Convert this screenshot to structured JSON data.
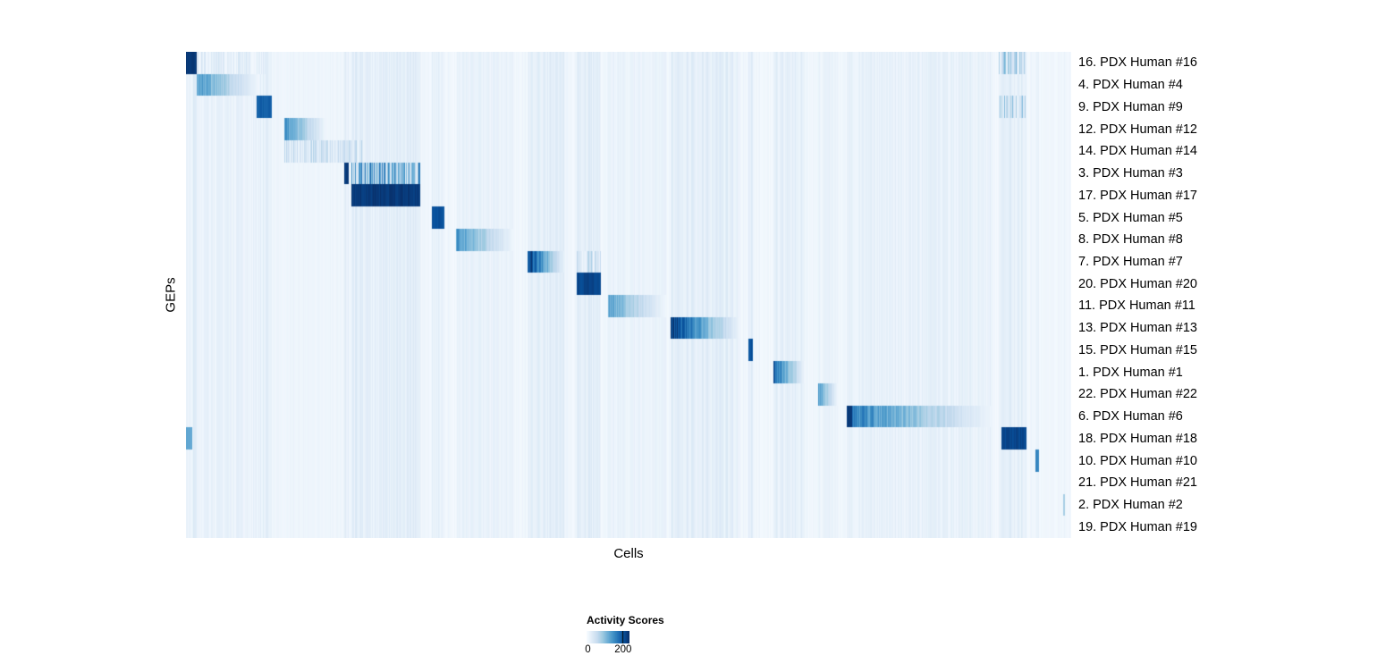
{
  "chart_data": {
    "type": "heatmap",
    "title": "",
    "xlabel": "Cells",
    "ylabel": "GEPs",
    "legend": {
      "title": "Activity Scores",
      "tick_labels": [
        "0",
        "200"
      ],
      "tick_positions": [
        0.03,
        0.85
      ],
      "colormap": [
        "#f7fbff",
        "#deebf7",
        "#c6dbef",
        "#9ecae1",
        "#6baed6",
        "#4292c6",
        "#2171b5",
        "#08519c",
        "#08306b"
      ]
    },
    "value_range": [
      0,
      200
    ],
    "grid": false,
    "cross_talk": 0.13,
    "rows": [
      {
        "label": "16. PDX Human #16",
        "segments": [
          {
            "start": 0.0,
            "end": 0.012,
            "intensity": 1.0,
            "style": "solid"
          },
          {
            "start": 0.012,
            "end": 0.09,
            "intensity": 0.18,
            "style": "stripes"
          },
          {
            "start": 0.918,
            "end": 0.948,
            "intensity": 0.5,
            "style": "stripes"
          }
        ]
      },
      {
        "label": "4. PDX Human #4",
        "segments": [
          {
            "start": 0.012,
            "end": 0.083,
            "intensity": 0.6,
            "style": "gradient"
          }
        ]
      },
      {
        "label": "9. PDX Human #9",
        "segments": [
          {
            "start": 0.08,
            "end": 0.097,
            "intensity": 0.85,
            "style": "solid"
          },
          {
            "start": 0.918,
            "end": 0.948,
            "intensity": 0.45,
            "style": "stripes"
          }
        ]
      },
      {
        "label": "12. PDX Human #12",
        "segments": [
          {
            "start": 0.111,
            "end": 0.159,
            "intensity": 0.6,
            "style": "gradient"
          }
        ]
      },
      {
        "label": "14. PDX Human #14",
        "segments": [
          {
            "start": 0.111,
            "end": 0.2,
            "intensity": 0.32,
            "style": "stripes"
          }
        ]
      },
      {
        "label": "3. PDX Human #3",
        "segments": [
          {
            "start": 0.179,
            "end": 0.184,
            "intensity": 1.0,
            "style": "solid"
          },
          {
            "start": 0.187,
            "end": 0.265,
            "intensity": 0.8,
            "style": "stripes"
          }
        ]
      },
      {
        "label": "17. PDX Human #17",
        "segments": [
          {
            "start": 0.187,
            "end": 0.265,
            "intensity": 1.0,
            "style": "solid"
          }
        ]
      },
      {
        "label": "5. PDX Human #5",
        "segments": [
          {
            "start": 0.278,
            "end": 0.292,
            "intensity": 0.9,
            "style": "solid"
          }
        ]
      },
      {
        "label": "8. PDX Human #8",
        "segments": [
          {
            "start": 0.305,
            "end": 0.371,
            "intensity": 0.6,
            "style": "gradient"
          }
        ]
      },
      {
        "label": "7. PDX Human #7",
        "segments": [
          {
            "start": 0.386,
            "end": 0.428,
            "intensity": 0.95,
            "style": "gradient"
          },
          {
            "start": 0.441,
            "end": 0.469,
            "intensity": 0.35,
            "style": "stripes"
          }
        ]
      },
      {
        "label": "20. PDX Human #20",
        "segments": [
          {
            "start": 0.441,
            "end": 0.469,
            "intensity": 0.95,
            "style": "solid"
          }
        ]
      },
      {
        "label": "11. PDX Human #11",
        "segments": [
          {
            "start": 0.477,
            "end": 0.542,
            "intensity": 0.55,
            "style": "gradient"
          }
        ]
      },
      {
        "label": "13. PDX Human #13",
        "segments": [
          {
            "start": 0.547,
            "end": 0.625,
            "intensity": 0.95,
            "style": "gradient"
          }
        ]
      },
      {
        "label": "15. PDX Human #15",
        "segments": [
          {
            "start": 0.635,
            "end": 0.64,
            "intensity": 0.9,
            "style": "solid"
          }
        ]
      },
      {
        "label": "1. PDX Human #1",
        "segments": [
          {
            "start": 0.664,
            "end": 0.699,
            "intensity": 0.85,
            "style": "gradient"
          }
        ]
      },
      {
        "label": "22. PDX Human #22",
        "segments": [
          {
            "start": 0.714,
            "end": 0.736,
            "intensity": 0.6,
            "style": "gradient"
          }
        ]
      },
      {
        "label": "6. PDX Human #6",
        "segments": [
          {
            "start": 0.746,
            "end": 0.753,
            "intensity": 1.0,
            "style": "solid"
          },
          {
            "start": 0.753,
            "end": 0.911,
            "intensity": 0.7,
            "style": "gradient"
          }
        ]
      },
      {
        "label": "18. PDX Human #18",
        "segments": [
          {
            "start": 0.0,
            "end": 0.007,
            "intensity": 0.55,
            "style": "solid"
          },
          {
            "start": 0.921,
            "end": 0.949,
            "intensity": 0.95,
            "style": "solid"
          }
        ]
      },
      {
        "label": "10. PDX Human #10",
        "segments": [
          {
            "start": 0.96,
            "end": 0.964,
            "intensity": 0.7,
            "style": "solid"
          }
        ]
      },
      {
        "label": "21. PDX Human #21",
        "segments": []
      },
      {
        "label": "2. PDX Human #2",
        "segments": [
          {
            "start": 0.991,
            "end": 0.993,
            "intensity": 0.35,
            "style": "solid"
          }
        ]
      },
      {
        "label": "19. PDX Human #19",
        "segments": []
      }
    ]
  }
}
